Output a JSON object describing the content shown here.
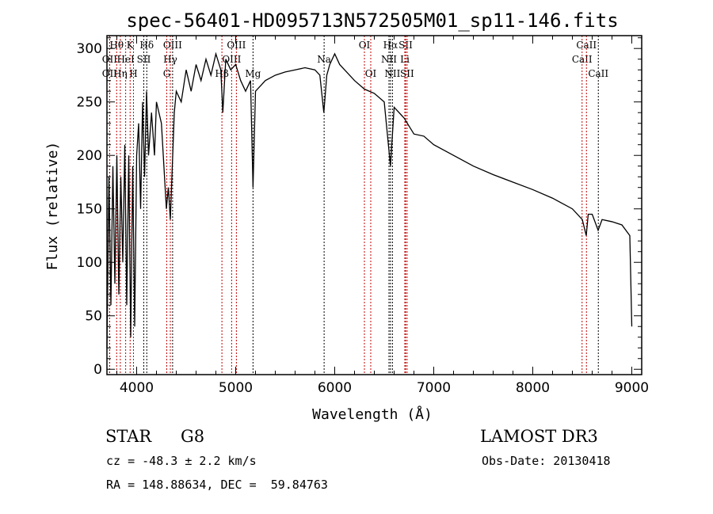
{
  "chart_data": {
    "type": "line",
    "title": "spec-56401-HD095713N572505M01_sp11-146.fits",
    "xlabel": "Wavelength (Å)",
    "ylabel": "Flux (relative)",
    "xlim": [
      3700,
      9100
    ],
    "ylim": [
      -5,
      312
    ],
    "xticks": [
      4000,
      5000,
      6000,
      7000,
      8000,
      9000
    ],
    "yticks": [
      0,
      50,
      100,
      150,
      200,
      250,
      300
    ],
    "grid": false,
    "series": [
      {
        "name": "spectrum",
        "x": [
          3700,
          3720,
          3740,
          3760,
          3780,
          3800,
          3820,
          3840,
          3860,
          3880,
          3900,
          3920,
          3940,
          3960,
          3980,
          4000,
          4020,
          4040,
          4060,
          4080,
          4100,
          4120,
          4150,
          4180,
          4200,
          4250,
          4300,
          4320,
          4340,
          4380,
          4400,
          4450,
          4500,
          4550,
          4600,
          4650,
          4700,
          4750,
          4800,
          4850,
          4870,
          4900,
          4950,
          5000,
          5050,
          5100,
          5150,
          5175,
          5200,
          5250,
          5300,
          5400,
          5500,
          5600,
          5700,
          5800,
          5850,
          5890,
          5920,
          5950,
          6000,
          6050,
          6100,
          6200,
          6300,
          6400,
          6500,
          6563,
          6600,
          6700,
          6800,
          6900,
          7000,
          7200,
          7400,
          7600,
          7800,
          8000,
          8200,
          8400,
          8500,
          8540,
          8560,
          8600,
          8660,
          8700,
          8800,
          8900,
          8980,
          9000
        ],
        "y": [
          20,
          180,
          60,
          190,
          80,
          200,
          70,
          180,
          100,
          210,
          60,
          200,
          30,
          190,
          40,
          200,
          230,
          150,
          250,
          180,
          260,
          200,
          240,
          200,
          250,
          230,
          150,
          170,
          140,
          240,
          260,
          250,
          280,
          260,
          285,
          270,
          290,
          275,
          295,
          280,
          240,
          290,
          280,
          285,
          270,
          260,
          270,
          170,
          260,
          265,
          270,
          275,
          278,
          280,
          282,
          280,
          275,
          240,
          275,
          285,
          295,
          285,
          280,
          270,
          262,
          258,
          250,
          190,
          245,
          235,
          220,
          218,
          210,
          200,
          190,
          182,
          175,
          168,
          160,
          150,
          140,
          125,
          145,
          145,
          130,
          140,
          138,
          135,
          125,
          40
        ]
      }
    ],
    "lines": [
      {
        "label": "OII",
        "wl": 3727,
        "row": 2,
        "color": "red"
      },
      {
        "label": "OII",
        "wl": 3727,
        "row": 3,
        "color": "red"
      },
      {
        "label": "Hθ",
        "wl": 3798,
        "row": 1,
        "color": "red"
      },
      {
        "label": "Hη",
        "wl": 3835,
        "row": 3,
        "color": "red"
      },
      {
        "label": "HeI",
        "wl": 3889,
        "row": 2,
        "color": "red"
      },
      {
        "label": "K",
        "wl": 3934,
        "row": 1,
        "color": "red"
      },
      {
        "label": "H",
        "wl": 3968,
        "row": 3,
        "color": "red"
      },
      {
        "label": "SII",
        "wl": 4072,
        "row": 2,
        "color": "black"
      },
      {
        "label": "Hδ",
        "wl": 4102,
        "row": 1,
        "color": "black"
      },
      {
        "label": "G",
        "wl": 4304,
        "row": 3,
        "color": "red"
      },
      {
        "label": "Hγ",
        "wl": 4340,
        "row": 2,
        "color": "red"
      },
      {
        "label": "OIII",
        "wl": 4363,
        "row": 1,
        "color": "black"
      },
      {
        "label": "Hβ",
        "wl": 4861,
        "row": 3,
        "color": "red"
      },
      {
        "label": "OIII",
        "wl": 4959,
        "row": 2,
        "color": "red"
      },
      {
        "label": "OIII",
        "wl": 5007,
        "row": 1,
        "color": "red"
      },
      {
        "label": "Mg",
        "wl": 5175,
        "row": 3,
        "color": "black"
      },
      {
        "label": "Na",
        "wl": 5893,
        "row": 2,
        "color": "black"
      },
      {
        "label": "OI",
        "wl": 6300,
        "row": 1,
        "color": "red"
      },
      {
        "label": "OI",
        "wl": 6364,
        "row": 3,
        "color": "red"
      },
      {
        "label": "NII",
        "wl": 6548,
        "row": 2,
        "color": "black"
      },
      {
        "label": "Hα",
        "wl": 6563,
        "row": 1,
        "color": "black"
      },
      {
        "label": "NII",
        "wl": 6583,
        "row": 3,
        "color": "black"
      },
      {
        "label": "Li",
        "wl": 6708,
        "row": 2,
        "color": "red"
      },
      {
        "label": "SII",
        "wl": 6716,
        "row": 1,
        "color": "red"
      },
      {
        "label": "SII",
        "wl": 6731,
        "row": 3,
        "color": "red"
      },
      {
        "label": "CaII",
        "wl": 8498,
        "row": 2,
        "color": "red"
      },
      {
        "label": "CaII",
        "wl": 8542,
        "row": 1,
        "color": "red"
      },
      {
        "label": "CaII",
        "wl": 8662,
        "row": 3,
        "color": "black"
      }
    ]
  },
  "info": {
    "class": "STAR",
    "subclass": "G8",
    "survey": "LAMOST DR3",
    "cz": "cz = -48.3 ± 2.2 km/s",
    "obsdate": "Obs-Date: 20130418",
    "radec": "RA = 148.88634, DEC =  59.84763"
  }
}
